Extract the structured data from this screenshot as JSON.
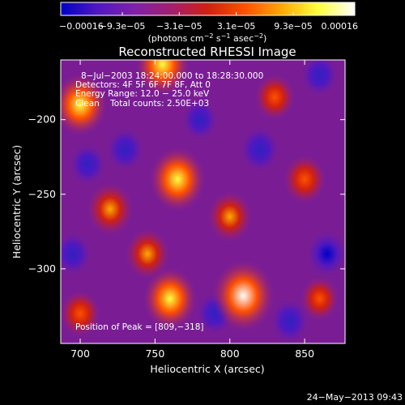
{
  "chart_data": {
    "type": "heatmap",
    "title": "Reconstructed RHESSI Image",
    "xlabel": "Heliocentric X (arcsec)",
    "ylabel": "Heliocentric Y (arcsec)",
    "xlim": [
      687,
      877
    ],
    "ylim": [
      -350,
      -160
    ],
    "x_ticks": [
      700,
      750,
      800,
      850
    ],
    "x_tick_labels": [
      "700",
      "750",
      "800",
      "850"
    ],
    "y_ticks": [
      -200,
      -250,
      -300
    ],
    "y_tick_labels": [
      "−200",
      "−250",
      "−300"
    ],
    "colorbar": {
      "range": [
        -0.00016,
        0.00016
      ],
      "ticks": [
        -0.00016,
        -9.3e-05,
        -3.1e-05,
        3.1e-05,
        9.3e-05,
        0.00016
      ],
      "tick_labels": [
        "−0.00016",
        "−9.3e−05",
        "−3.1e−05",
        "3.1e−05",
        "9.3e−05",
        "0.00016"
      ],
      "unit_parts": [
        "(photons cm",
        "−2",
        " s",
        "−1",
        " asec",
        "−2",
        ")"
      ],
      "colors": [
        "#0000c8",
        "#5018c0",
        "#8020a8",
        "#a02070",
        "#d02010",
        "#ff5000",
        "#ffa800",
        "#ffff40",
        "#ffffff"
      ]
    },
    "annotations": [
      "8−Jul−2003 18:24:00.000 to 18:28:30.000",
      "Detectors: 4F 5F 6F 7F 8F, Att 0",
      "Energy Range: 12.0 − 25.0 keV",
      "Clean    Total counts: 2.50E+03"
    ],
    "peak_label": "Position of Peak = [809,−318]",
    "peak": [
      809,
      -318
    ],
    "sources": [
      {
        "x": 809,
        "y": -318,
        "value": 0.00016
      },
      {
        "x": 760,
        "y": -320,
        "value": 0.00012
      },
      {
        "x": 765,
        "y": -240,
        "value": 0.00013
      },
      {
        "x": 700,
        "y": -190,
        "value": 0.00012
      },
      {
        "x": 755,
        "y": -163,
        "value": 0.00012
      },
      {
        "x": 800,
        "y": -265,
        "value": 7e-05
      },
      {
        "x": 720,
        "y": -260,
        "value": 8e-05
      },
      {
        "x": 850,
        "y": -240,
        "value": 6e-05
      },
      {
        "x": 745,
        "y": -290,
        "value": 7e-05
      },
      {
        "x": 830,
        "y": -185,
        "value": 5e-05
      },
      {
        "x": 700,
        "y": -330,
        "value": 5e-05
      },
      {
        "x": 860,
        "y": -320,
        "value": 4e-05
      },
      {
        "x": 820,
        "y": -220,
        "value": -8e-05
      },
      {
        "x": 730,
        "y": -220,
        "value": -6e-05
      },
      {
        "x": 865,
        "y": -290,
        "value": -9e-05
      },
      {
        "x": 790,
        "y": -330,
        "value": -6e-05
      },
      {
        "x": 840,
        "y": -335,
        "value": -7e-05
      },
      {
        "x": 705,
        "y": -230,
        "value": -5e-05
      },
      {
        "x": 780,
        "y": -200,
        "value": -5e-05
      },
      {
        "x": 695,
        "y": -290,
        "value": -6e-05
      },
      {
        "x": 860,
        "y": -170,
        "value": -6e-05
      }
    ]
  },
  "footer_date": "24−May−2013 09:43"
}
